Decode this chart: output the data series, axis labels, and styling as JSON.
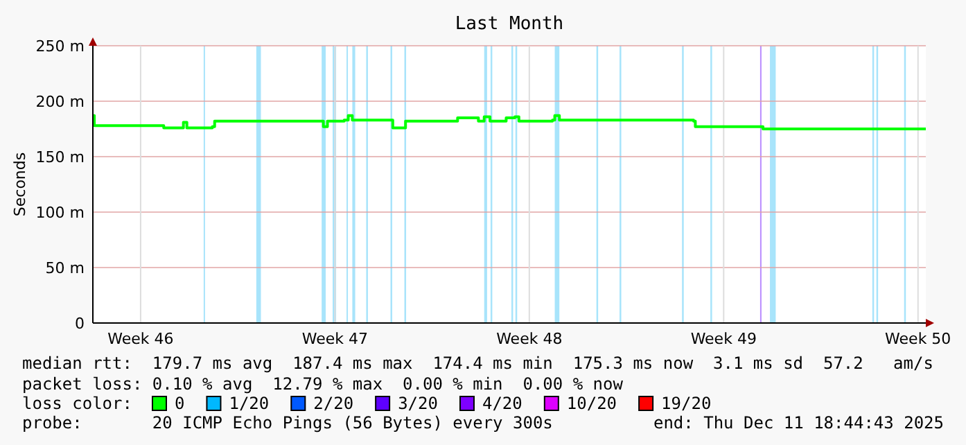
{
  "chart_data": {
    "type": "line",
    "title": "Last Month",
    "ylabel": "Seconds",
    "xlim": [
      "2025-11-11T18:44",
      "2025-12-11T18:44"
    ],
    "xticks": [
      {
        "value": "2025-11-13T12:00",
        "label": "Week 46"
      },
      {
        "value": "2025-11-20T12:00",
        "label": "Week 47"
      },
      {
        "value": "2025-11-27T12:00",
        "label": "Week 48"
      },
      {
        "value": "2025-12-04T12:00",
        "label": "Week 49"
      },
      {
        "value": "2025-12-11T12:00",
        "label": "Week 50"
      }
    ],
    "ylim": [
      0,
      250
    ],
    "yticks": [
      0,
      {
        "value": 50,
        "label": "50 m"
      },
      {
        "value": 100,
        "label": "100 m"
      },
      {
        "value": 150,
        "label": "150 m"
      },
      {
        "value": 200,
        "label": "200 m"
      },
      {
        "value": 250,
        "label": "250 m"
      }
    ],
    "grid": true,
    "legend": "bottom",
    "legend_title": "loss color:",
    "series": [
      {
        "name": "0",
        "color": "#00ff00",
        "x": [
          "2025-11-11T18:44",
          "2025-11-11T20:00",
          "2025-11-14T04:00",
          "2025-11-14T08:00",
          "2025-11-14T22:00",
          "2025-11-15T01:00",
          "2025-11-15T04:00",
          "2025-11-15T22:00",
          "2025-11-16T02:00",
          "2025-11-16T04:00",
          "2025-11-19T22:00",
          "2025-11-20T02:00",
          "2025-11-20T05:30",
          "2025-11-20T20:00",
          "2025-11-20T23:30",
          "2025-11-21T03:00",
          "2025-11-22T10:00",
          "2025-11-22T14:00",
          "2025-11-22T22:00",
          "2025-11-23T01:00",
          "2025-11-24T16:00",
          "2025-11-24T22:00",
          "2025-11-25T10:00",
          "2025-11-25T16:00",
          "2025-11-25T21:00",
          "2025-11-26T02:00",
          "2025-11-26T16:00",
          "2025-11-26T23:30",
          "2025-11-27T03:00",
          "2025-11-28T08:00",
          "2025-11-28T10:00",
          "2025-11-28T14:00",
          "2025-12-03T10:00",
          "2025-12-03T11:30",
          "2025-12-05T20:00",
          "2025-12-05T22:00",
          "2025-12-11T18:44"
        ],
        "values": [
          187,
          178,
          178,
          176,
          176,
          181,
          176,
          176,
          177,
          182,
          182,
          177,
          182,
          183,
          187,
          183,
          183,
          176,
          176,
          182,
          182,
          185,
          185,
          182,
          186,
          182,
          185,
          186,
          182,
          183,
          187,
          183,
          182,
          177,
          177,
          175,
          175
        ]
      },
      {
        "name": "1/20",
        "color": "#00b8ff"
      },
      {
        "name": "2/20",
        "color": "#0059ff"
      },
      {
        "name": "3/20",
        "color": "#5e00ff"
      },
      {
        "name": "4/20",
        "color": "#7e00ff"
      },
      {
        "name": "10/20",
        "color": "#dd00ff"
      },
      {
        "name": "19/20",
        "color": "#ff0000"
      }
    ],
    "bands": [
      {
        "axis": "x",
        "from": "2025-11-15T18:30",
        "to": "2025-11-15T19:30",
        "color": "#a8e4fb"
      },
      {
        "axis": "x",
        "from": "2025-11-17T16:00",
        "to": "2025-11-17T20:00",
        "color": "#a8e4fb"
      },
      {
        "axis": "x",
        "from": "2025-11-20T00:30",
        "to": "2025-11-20T04:00",
        "color": "#a8e4fb"
      },
      {
        "axis": "x",
        "from": "2025-11-20T10:00",
        "to": "2025-11-20T13:00",
        "color": "#a8e4fb"
      },
      {
        "axis": "x",
        "from": "2025-11-20T22:00",
        "to": "2025-11-20T23:00",
        "color": "#a8e4fb"
      },
      {
        "axis": "x",
        "from": "2025-11-21T03:00",
        "to": "2025-11-21T05:30",
        "color": "#a8e4fb"
      },
      {
        "axis": "x",
        "from": "2025-11-21T15:00",
        "to": "2025-11-21T16:30",
        "color": "#a8e4fb"
      },
      {
        "axis": "x",
        "from": "2025-11-22T12:00",
        "to": "2025-11-22T13:30",
        "color": "#a8e4fb"
      },
      {
        "axis": "x",
        "from": "2025-11-23T00:00",
        "to": "2025-11-23T01:30",
        "color": "#a8e4fb"
      },
      {
        "axis": "x",
        "from": "2025-11-25T21:00",
        "to": "2025-11-25T23:30",
        "color": "#a8e4fb"
      },
      {
        "axis": "x",
        "from": "2025-11-26T02:30",
        "to": "2025-11-26T04:00",
        "color": "#a8e4fb"
      },
      {
        "axis": "x",
        "from": "2025-11-26T20:30",
        "to": "2025-11-26T22:00",
        "color": "#a8e4fb"
      },
      {
        "axis": "x",
        "from": "2025-11-27T00:00",
        "to": "2025-11-27T01:30",
        "color": "#a8e4fb"
      },
      {
        "axis": "x",
        "from": "2025-11-28T10:00",
        "to": "2025-11-28T14:00",
        "color": "#a8e4fb"
      },
      {
        "axis": "x",
        "from": "2025-11-29T22:00",
        "to": "2025-11-29T23:30",
        "color": "#a8e4fb"
      },
      {
        "axis": "x",
        "from": "2025-11-30T18:00",
        "to": "2025-11-30T19:30",
        "color": "#a8e4fb"
      },
      {
        "axis": "x",
        "from": "2025-12-03T00:00",
        "to": "2025-12-03T01:30",
        "color": "#a8e4fb"
      },
      {
        "axis": "x",
        "from": "2025-12-04T00:30",
        "to": "2025-12-04T02:00",
        "color": "#a8e4fb"
      },
      {
        "axis": "x",
        "from": "2025-12-05T19:30",
        "to": "2025-12-05T20:30",
        "color": "#b98cff"
      },
      {
        "axis": "x",
        "from": "2025-12-06T04:00",
        "to": "2025-12-06T09:00",
        "color": "#a8e4fb"
      },
      {
        "axis": "x",
        "from": "2025-12-09T20:30",
        "to": "2025-12-09T22:00",
        "color": "#a8e4fb"
      },
      {
        "axis": "x",
        "from": "2025-12-10T00:00",
        "to": "2025-12-10T01:30",
        "color": "#a8e4fb"
      },
      {
        "axis": "x",
        "from": "2025-12-11T00:00",
        "to": "2025-12-11T01:30",
        "color": "#a8e4fb"
      }
    ],
    "annotations": [
      "median rtt:  179.7 ms avg  187.4 ms max  174.4 ms min  175.3 ms now  3.1 ms sd  57.2   am/s",
      "packet loss: 0.10 % avg  12.79 % max  0.00 % min  0.00 % now",
      "probe:       20 ICMP Echo Pings (56 Bytes) every 300s",
      "end: Thu Dec 11 18:44:43 2025"
    ]
  }
}
